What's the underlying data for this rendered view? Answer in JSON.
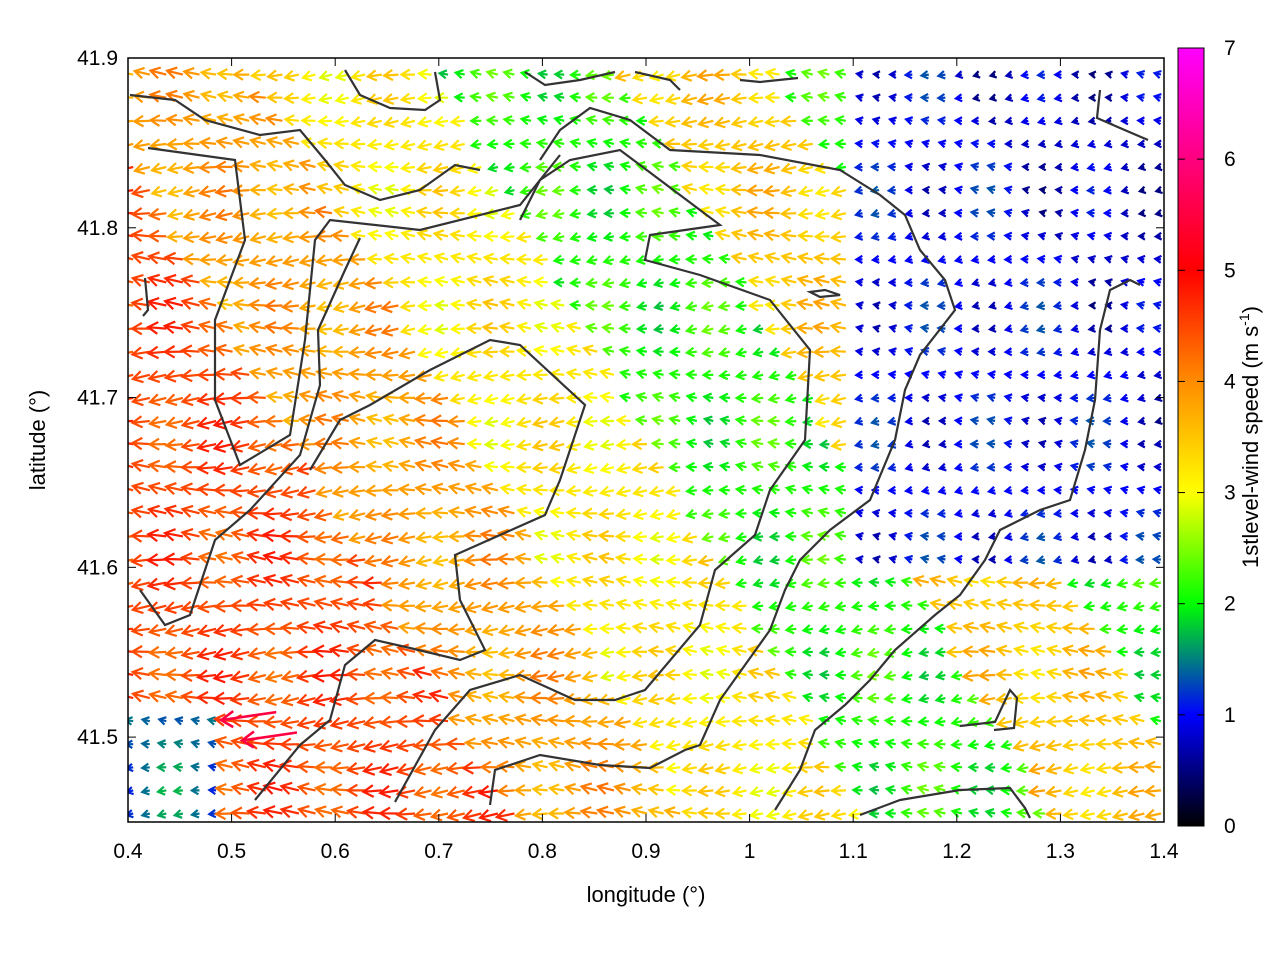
{
  "chart_data": {
    "type": "vector-field",
    "xlabel": "longitude (°)",
    "ylabel": "latitude (°)",
    "xlim": [
      0.4,
      1.4
    ],
    "ylim": [
      41.45,
      41.9
    ],
    "xticks": [
      "0.4",
      "0.5",
      "0.6",
      "0.7",
      "0.8",
      "0.9",
      "1",
      "1.1",
      "1.2",
      "1.3",
      "1.4"
    ],
    "yticks": [
      "41.5",
      "41.6",
      "41.7",
      "41.8",
      "41.9"
    ],
    "colorbar": {
      "label_main": "1stlevel-wind speed (m s",
      "label_sup": "-1",
      "label_end": ")",
      "range": [
        0,
        7
      ],
      "ticks": [
        "0",
        "1",
        "2",
        "3",
        "4",
        "5",
        "6",
        "7"
      ],
      "palette": [
        "#000000",
        "#0000ff",
        "#00ff00",
        "#ffff00",
        "#ff8c00",
        "#ff0000",
        "#ff00ff"
      ]
    },
    "grid_spacing_deg": 0.01,
    "wind_direction": "predominantly easterly (arrows point west)",
    "speed_zones_m_s": {
      "west_orange_band": 4.5,
      "central_yellow_band": 3.2,
      "central_green_band": 2.1,
      "east_blue_area": 0.8
    },
    "peak_speed_m_s": 5.5,
    "contours": "terrain contour lines (dark grey)"
  }
}
